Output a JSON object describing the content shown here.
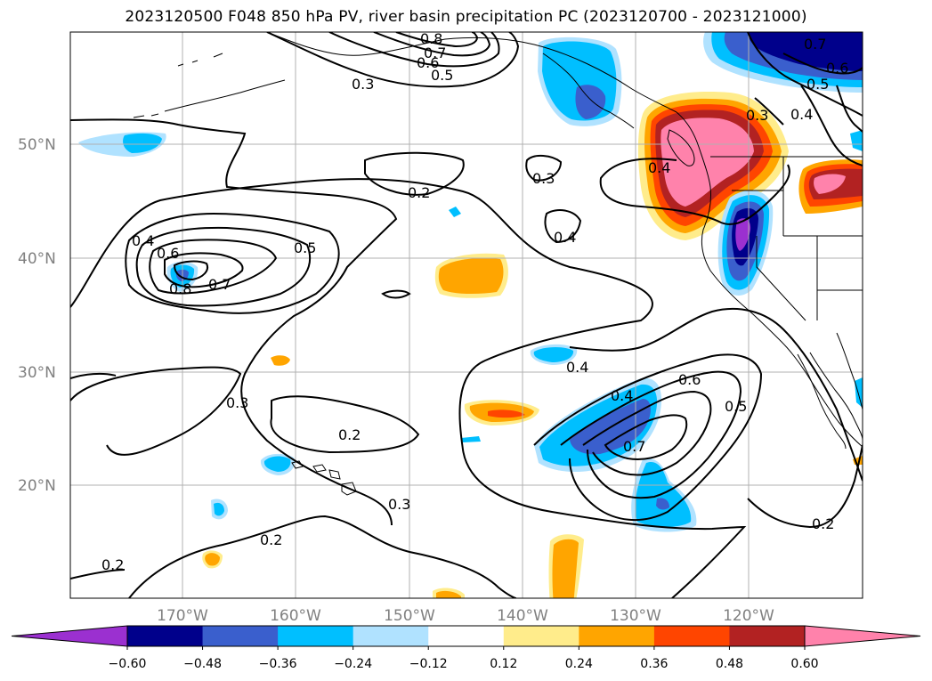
{
  "title": "2023120500 F048 850 hPa PV, river basin precipitation PC (2023120700 - 2023121000)",
  "lat_labels": [
    "50°N",
    "40°N",
    "30°N",
    "20°N"
  ],
  "lon_labels": [
    "170°W",
    "160°W",
    "150°W",
    "140°W",
    "130°W",
    "120°W"
  ],
  "colorbar": {
    "ticks": [
      "−0.60",
      "−0.48",
      "−0.36",
      "−0.24",
      "−0.12",
      "0.12",
      "0.24",
      "0.36",
      "0.48",
      "0.60"
    ],
    "colors": [
      "#9b30d0",
      "#00008b",
      "#3a5fcd",
      "#00bfff",
      "#b0e2ff",
      "#ffffff",
      "#ffec8b",
      "#ffa500",
      "#ff4500",
      "#b22222",
      "#ff82ab"
    ]
  },
  "contour_labels": [
    "0.8",
    "0.7",
    "0.6",
    "0.5",
    "0.3",
    "0.7",
    "0.6",
    "0.5",
    "0.3",
    "0.4",
    "0.2",
    "0.3",
    "0.4",
    "0.4",
    "0.6",
    "0.5",
    "0.8",
    "0.7",
    "0.3",
    "0.2",
    "0.4",
    "0.4",
    "0.6",
    "0.5",
    "0.7",
    "0.3",
    "0.2",
    "0.2",
    "0.2"
  ]
}
